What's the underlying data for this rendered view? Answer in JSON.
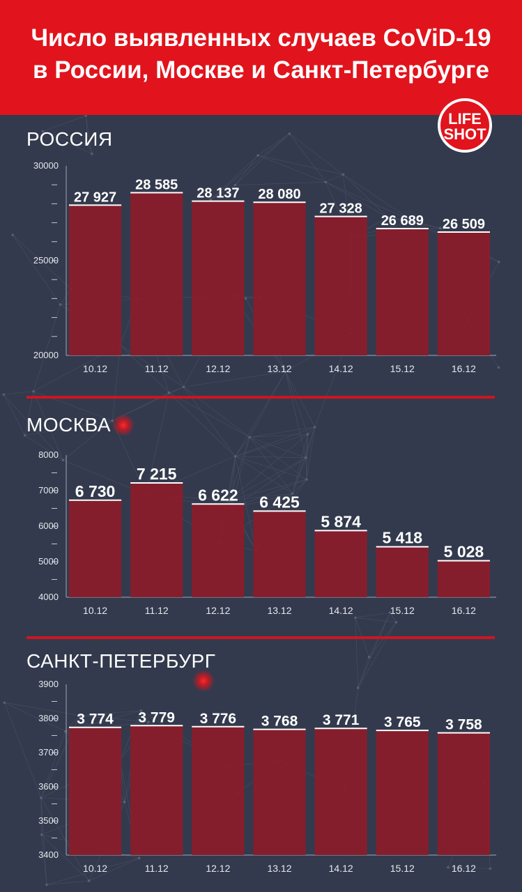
{
  "header": {
    "title_line1": "Число выявленных случаев CoViD-19",
    "title_line2": "в России, Москве и Санкт-Петербурге"
  },
  "logo": {
    "line1": "LIFE",
    "line2": "SHOT"
  },
  "colors": {
    "header_red": "#e1131c",
    "background": "#333a4d",
    "bar": "#8c1c2a",
    "divider": "#d01420"
  },
  "chart_data": [
    {
      "type": "bar",
      "title": "РОССИЯ",
      "categories": [
        "10.12",
        "11.12",
        "12.12",
        "13.12",
        "14.12",
        "15.12",
        "16.12"
      ],
      "values": [
        27927,
        28585,
        28137,
        28080,
        27328,
        26689,
        26509
      ],
      "value_labels": [
        "27 927",
        "28 585",
        "28 137",
        "28 080",
        "27 328",
        "26 689",
        "26 509"
      ],
      "ylim": [
        20000,
        30000
      ],
      "yticks": [
        "20000",
        "25000",
        "30000"
      ],
      "minor_ticks": 9,
      "grid": false
    },
    {
      "type": "bar",
      "title": "МОСКВА",
      "categories": [
        "10.12",
        "11.12",
        "12.12",
        "13.12",
        "14.12",
        "15.12",
        "16.12"
      ],
      "values": [
        6730,
        7215,
        6622,
        6425,
        5874,
        5418,
        5028
      ],
      "value_labels": [
        "6 730",
        "7 215",
        "6 622",
        "6 425",
        "5 874",
        "5 418",
        "5 028"
      ],
      "ylim": [
        4000,
        8000
      ],
      "yticks": [
        "4000",
        "5000",
        "6000",
        "7000",
        "8000"
      ],
      "minor_ticks": 7,
      "grid": false
    },
    {
      "type": "bar",
      "title": "САНКТ-ПЕТЕРБУРГ",
      "categories": [
        "10.12",
        "11.12",
        "12.12",
        "13.12",
        "14.12",
        "15.12",
        "16.12"
      ],
      "values": [
        3774,
        3779,
        3776,
        3768,
        3771,
        3765,
        3758
      ],
      "value_labels": [
        "3 774",
        "3 779",
        "3 776",
        "3 768",
        "3 771",
        "3 765",
        "3 758"
      ],
      "ylim": [
        3400,
        3900
      ],
      "yticks": [
        "3400",
        "3500",
        "3600",
        "3700",
        "3800",
        "3900"
      ],
      "minor_ticks": 9,
      "grid": false
    }
  ]
}
